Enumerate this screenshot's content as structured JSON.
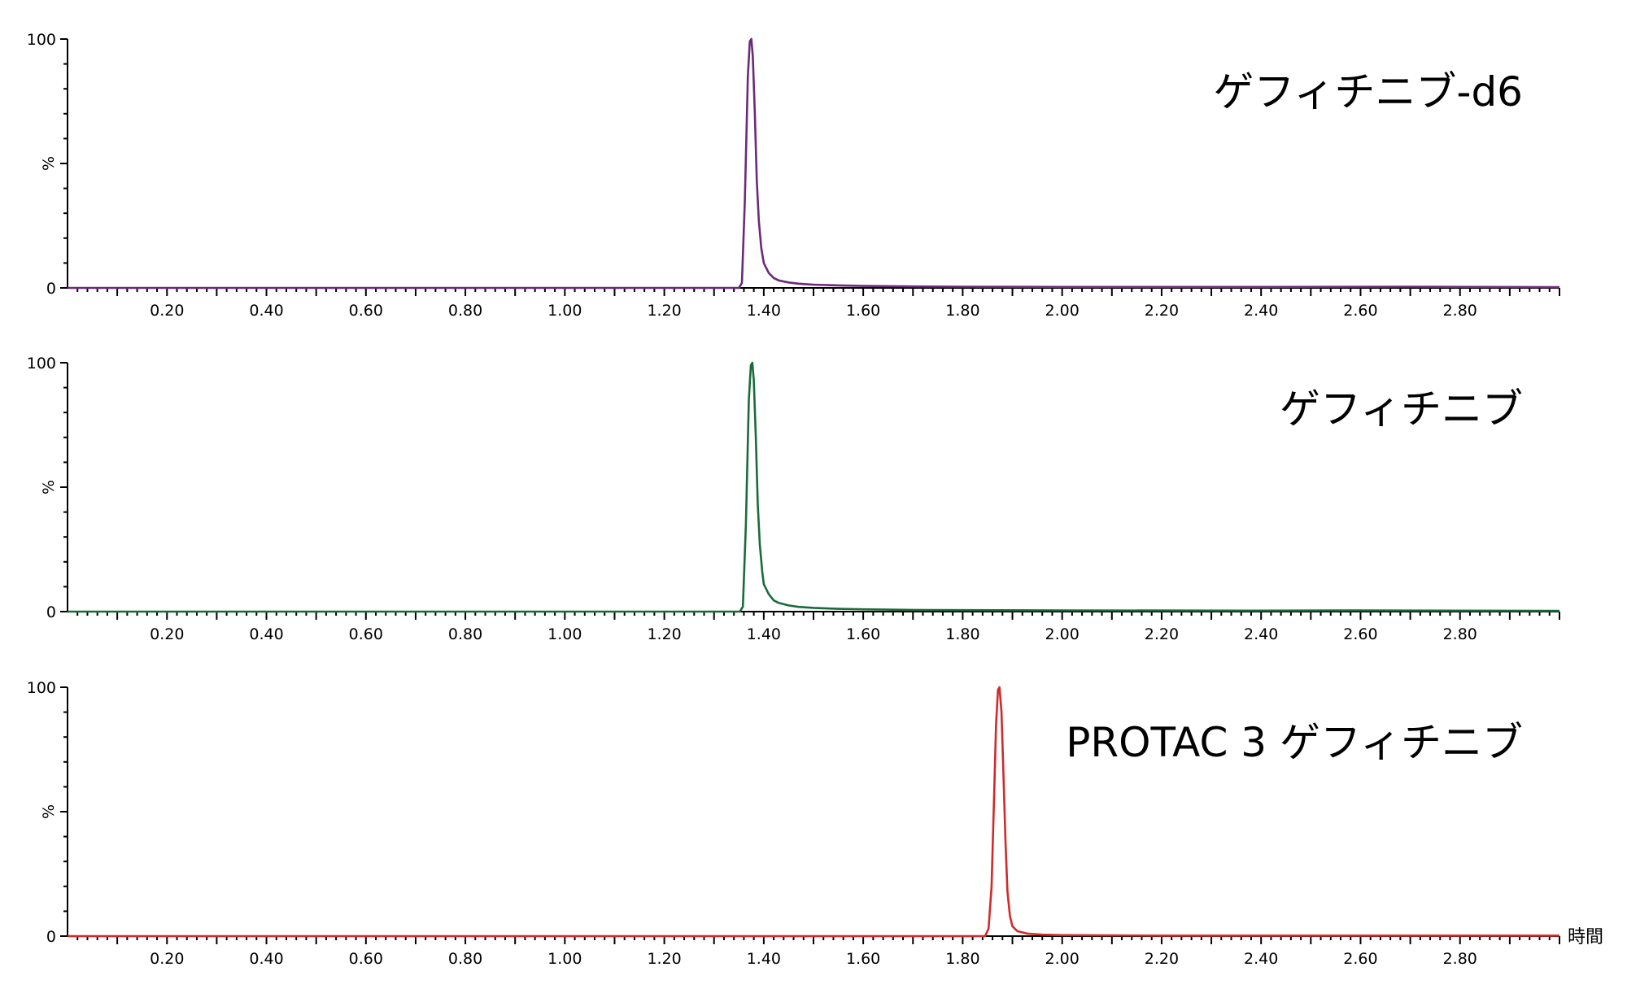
{
  "x_unit_label": "時間",
  "chart_data": [
    {
      "type": "line",
      "title": "ゲフィチニブ-d6",
      "color": "#6b2a7a",
      "xlabel": "",
      "ylabel": "%",
      "xlim": [
        0.0,
        3.0
      ],
      "ylim": [
        0,
        100
      ],
      "x_ticks": [
        "0.20",
        "0.40",
        "0.60",
        "0.80",
        "1.00",
        "1.20",
        "1.40",
        "1.60",
        "1.80",
        "2.00",
        "2.20",
        "2.40",
        "2.60",
        "2.80"
      ],
      "y_ticks": [
        "0",
        "%",
        "100"
      ],
      "grid": false,
      "series": [
        {
          "x": [
            0.0,
            1.35,
            1.356,
            1.362,
            1.368,
            1.372,
            1.375,
            1.378,
            1.382,
            1.386,
            1.39,
            1.395,
            1.4,
            1.41,
            1.42,
            1.43,
            1.45,
            1.47,
            1.5,
            1.55,
            1.6,
            1.7,
            1.8,
            2.0,
            2.4,
            2.7,
            3.0
          ],
          "y": [
            0,
            0,
            2,
            35,
            85,
            99,
            100,
            93,
            70,
            43,
            27,
            16,
            10,
            6,
            4,
            3,
            2.2,
            1.7,
            1.3,
            1.0,
            0.8,
            0.6,
            0.5,
            0.4,
            0.4,
            0.5,
            0.3
          ]
        }
      ]
    },
    {
      "type": "line",
      "title": "ゲフィチニブ",
      "color": "#1a6b3a",
      "xlabel": "",
      "ylabel": "%",
      "xlim": [
        0.0,
        3.0
      ],
      "ylim": [
        0,
        100
      ],
      "x_ticks": [
        "0.20",
        "0.40",
        "0.60",
        "0.80",
        "1.00",
        "1.20",
        "1.40",
        "1.60",
        "1.80",
        "2.00",
        "2.20",
        "2.40",
        "2.60",
        "2.80"
      ],
      "y_ticks": [
        "0",
        "%",
        "100"
      ],
      "grid": false,
      "series": [
        {
          "x": [
            0.0,
            1.352,
            1.358,
            1.364,
            1.37,
            1.374,
            1.377,
            1.38,
            1.384,
            1.388,
            1.392,
            1.397,
            1.4,
            1.41,
            1.42,
            1.43,
            1.45,
            1.47,
            1.5,
            1.55,
            1.6,
            1.7,
            1.8,
            2.0,
            2.4,
            2.6,
            3.0
          ],
          "y": [
            0,
            0,
            2,
            35,
            85,
            99,
            100,
            93,
            70,
            43,
            27,
            16,
            11,
            7,
            4.5,
            3.5,
            2.5,
            1.9,
            1.5,
            1.1,
            0.9,
            0.7,
            0.6,
            0.5,
            0.4,
            0.5,
            0.3
          ]
        }
      ]
    },
    {
      "type": "line",
      "title": "PROTAC 3 ゲフィチニブ",
      "color": "#d22a2a",
      "xlabel": "時間",
      "ylabel": "%",
      "xlim": [
        0.0,
        3.0
      ],
      "ylim": [
        0,
        100
      ],
      "x_ticks": [
        "0.20",
        "0.40",
        "0.60",
        "0.80",
        "1.00",
        "1.20",
        "1.40",
        "1.60",
        "1.80",
        "2.00",
        "2.20",
        "2.40",
        "2.60",
        "2.80"
      ],
      "y_ticks": [
        "0",
        "%",
        "100"
      ],
      "grid": false,
      "series": [
        {
          "x": [
            0.0,
            1.845,
            1.852,
            1.858,
            1.863,
            1.867,
            1.871,
            1.874,
            1.878,
            1.882,
            1.886,
            1.89,
            1.895,
            1.9,
            1.91,
            1.93,
            1.96,
            2.0,
            2.2,
            3.0
          ],
          "y": [
            0,
            0,
            3,
            20,
            55,
            85,
            99,
            100,
            90,
            65,
            38,
            18,
            8,
            4,
            2,
            1,
            0.6,
            0.4,
            0.2,
            0.2
          ]
        }
      ]
    }
  ]
}
